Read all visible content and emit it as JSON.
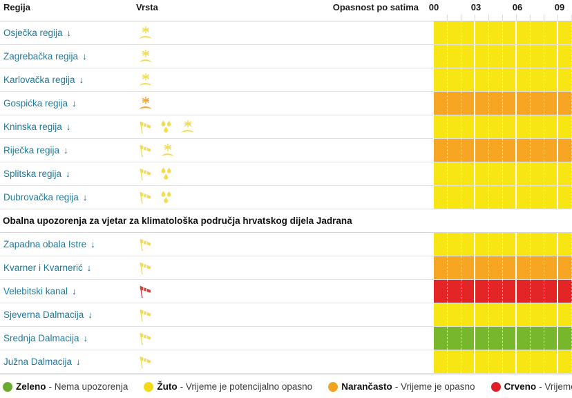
{
  "colors": {
    "band": {
      "yellow": "#F7E614",
      "orange": "#F6A623",
      "red": "#E32526",
      "green": "#76B72B"
    },
    "legend": {
      "green": "#69AC2F",
      "yellow": "#F2DA16",
      "orange": "#F0A41F",
      "red": "#DF2027"
    },
    "icon": {
      "yellow": "#F0DC55",
      "orange": "#F0A52E",
      "red": "#D2413A"
    },
    "link_text": "#1A7A9D",
    "link_arrow": "#0E5F83"
  },
  "table": {
    "col_region": "Regija",
    "col_type": "Vrsta",
    "col_hours": "Opasnost po satima",
    "hours": [
      "00",
      "03",
      "06",
      "09"
    ]
  },
  "sections": [
    {
      "title": "",
      "rows": [
        {
          "name": "Osječka regija",
          "arrow": "↓",
          "icons": [
            {
              "type": "snow-ice",
              "color": "yellow"
            }
          ],
          "level": "yellow"
        },
        {
          "name": "Zagrebačka regija",
          "arrow": "↓",
          "icons": [
            {
              "type": "snow-ice",
              "color": "yellow"
            }
          ],
          "level": "yellow"
        },
        {
          "name": "Karlovačka regija",
          "arrow": "↓",
          "icons": [
            {
              "type": "snow-ice",
              "color": "yellow"
            }
          ],
          "level": "yellow"
        },
        {
          "name": "Gospićka regija",
          "arrow": "↓",
          "icons": [
            {
              "type": "snow-ice",
              "color": "orange"
            }
          ],
          "level": "orange"
        },
        {
          "name": "Kninska regija",
          "arrow": "↓",
          "icons": [
            {
              "type": "wind",
              "color": "yellow"
            },
            {
              "type": "rain",
              "color": "yellow"
            },
            {
              "type": "snow-ice",
              "color": "yellow"
            }
          ],
          "level": "yellow"
        },
        {
          "name": "Riječka regija",
          "arrow": "↓",
          "icons": [
            {
              "type": "wind",
              "color": "yellow"
            },
            {
              "type": "snow-ice",
              "color": "yellow"
            }
          ],
          "level": "orange"
        },
        {
          "name": "Splitska regija",
          "arrow": "↓",
          "icons": [
            {
              "type": "wind",
              "color": "yellow"
            },
            {
              "type": "rain",
              "color": "yellow"
            }
          ],
          "level": "yellow"
        },
        {
          "name": "Dubrovačka regija",
          "arrow": "↓",
          "icons": [
            {
              "type": "wind",
              "color": "yellow"
            },
            {
              "type": "rain",
              "color": "yellow"
            }
          ],
          "level": "yellow"
        }
      ]
    },
    {
      "title": "Obalna upozorenja za vjetar za klimatološka područja hrvatskog dijela Jadrana",
      "rows": [
        {
          "name": "Zapadna obala Istre",
          "arrow": "↓",
          "icons": [
            {
              "type": "wind",
              "color": "yellow"
            }
          ],
          "level": "yellow"
        },
        {
          "name": "Kvarner i Kvarnerić",
          "arrow": "↓",
          "icons": [
            {
              "type": "wind",
              "color": "yellow"
            }
          ],
          "level": "orange"
        },
        {
          "name": "Velebitski kanal",
          "arrow": "↓",
          "icons": [
            {
              "type": "wind",
              "color": "red"
            }
          ],
          "level": "red"
        },
        {
          "name": "Sjeverna Dalmacija",
          "arrow": "↓",
          "icons": [
            {
              "type": "wind",
              "color": "yellow"
            }
          ],
          "level": "yellow"
        },
        {
          "name": "Srednja Dalmacija",
          "arrow": "↓",
          "icons": [
            {
              "type": "wind",
              "color": "yellow"
            }
          ],
          "level": "green"
        },
        {
          "name": "Južna Dalmacija",
          "arrow": "↓",
          "icons": [
            {
              "type": "wind",
              "color": "yellow"
            }
          ],
          "level": "yellow"
        }
      ]
    }
  ],
  "legend": [
    {
      "name": "Zeleno",
      "separator": "-",
      "desc": "Nema upozorenja",
      "color": "green"
    },
    {
      "name": "Žuto",
      "separator": "-",
      "desc": "Vrijeme je potencijalno opasno",
      "color": "yellow"
    },
    {
      "name": "Narančasto",
      "separator": "-",
      "desc": "Vrijeme je opasno",
      "color": "orange"
    },
    {
      "name": "Crveno",
      "separator": "-",
      "desc": "Vrijeme je izuzetno opasno",
      "color": "red"
    }
  ]
}
